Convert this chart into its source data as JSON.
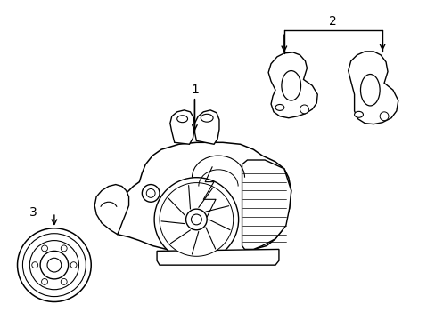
{
  "background_color": "#ffffff",
  "line_color": "#000000",
  "line_width": 1.0,
  "label_1": "1",
  "label_2": "2",
  "label_3": "3",
  "figsize": [
    4.89,
    3.6
  ],
  "dpi": 100
}
